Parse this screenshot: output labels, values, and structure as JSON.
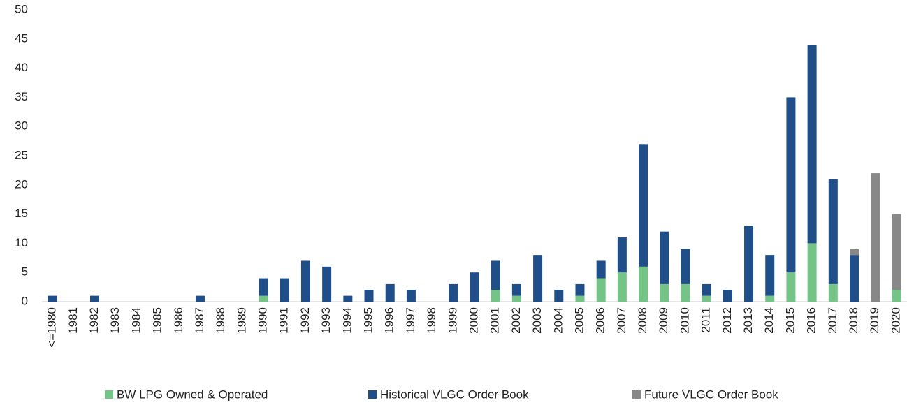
{
  "chart_data": {
    "type": "stacked_bar",
    "categories": [
      "<=1980",
      "1981",
      "1982",
      "1983",
      "1984",
      "1985",
      "1986",
      "1987",
      "1988",
      "1989",
      "1990",
      "1991",
      "1992",
      "1993",
      "1994",
      "1995",
      "1996",
      "1997",
      "1998",
      "1999",
      "2000",
      "2001",
      "2002",
      "2003",
      "2004",
      "2005",
      "2006",
      "2007",
      "2008",
      "2009",
      "2010",
      "2011",
      "2012",
      "2013",
      "2014",
      "2015",
      "2016",
      "2017",
      "2018",
      "2019",
      "2020"
    ],
    "series": [
      {
        "name": "BW LPG Owned & Operated",
        "color": "#74c488",
        "values": [
          0,
          0,
          0,
          0,
          0,
          0,
          0,
          0,
          0,
          0,
          1,
          0,
          0,
          0,
          0,
          0,
          0,
          0,
          0,
          0,
          0,
          2,
          1,
          0,
          0,
          1,
          4,
          5,
          6,
          3,
          3,
          1,
          0,
          0,
          1,
          5,
          10,
          3,
          0,
          0,
          2
        ]
      },
      {
        "name": "Historical VLGC Order Book",
        "color": "#1f4e89",
        "values": [
          1,
          0,
          1,
          0,
          0,
          0,
          0,
          1,
          0,
          0,
          3,
          4,
          7,
          6,
          1,
          2,
          3,
          2,
          0,
          3,
          5,
          5,
          2,
          8,
          2,
          2,
          3,
          6,
          21,
          9,
          6,
          2,
          2,
          13,
          7,
          30,
          34,
          18,
          8,
          0,
          0
        ]
      },
      {
        "name": "Future VLGC Order Book",
        "color": "#888888",
        "values": [
          0,
          0,
          0,
          0,
          0,
          0,
          0,
          0,
          0,
          0,
          0,
          0,
          0,
          0,
          0,
          0,
          0,
          0,
          0,
          0,
          0,
          0,
          0,
          0,
          0,
          0,
          0,
          0,
          0,
          0,
          0,
          0,
          0,
          0,
          0,
          0,
          0,
          0,
          1,
          22,
          13
        ]
      }
    ],
    "ylim": [
      0,
      50
    ],
    "yticks": [
      0,
      5,
      10,
      15,
      20,
      25,
      30,
      35,
      40,
      45,
      50
    ],
    "grid": false
  }
}
